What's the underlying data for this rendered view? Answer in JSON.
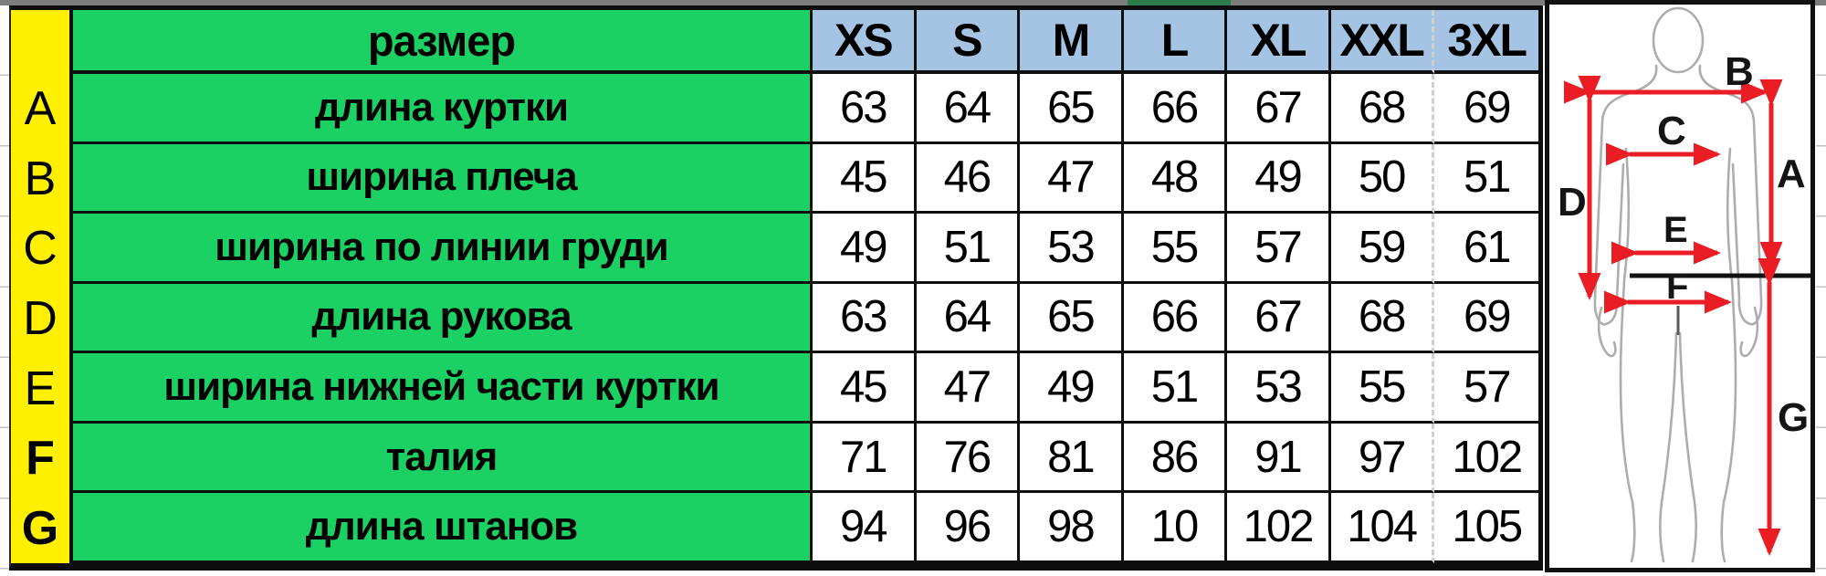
{
  "table": {
    "corner_label": "",
    "header_label": "размер",
    "sizes": [
      "XS",
      "S",
      "M",
      "L",
      "XL",
      "XXL",
      "3XL"
    ],
    "rows": [
      {
        "letter": "A",
        "label": "длина куртки",
        "bold_letter": false,
        "values": [
          "63",
          "64",
          "65",
          "66",
          "67",
          "68",
          "69"
        ]
      },
      {
        "letter": "B",
        "label": "ширина плеча",
        "bold_letter": false,
        "values": [
          "45",
          "46",
          "47",
          "48",
          "49",
          "50",
          "51"
        ]
      },
      {
        "letter": "C",
        "label": "ширина по линии груди",
        "bold_letter": false,
        "values": [
          "49",
          "51",
          "53",
          "55",
          "57",
          "59",
          "61"
        ]
      },
      {
        "letter": "D",
        "label": "длина рукова",
        "bold_letter": false,
        "values": [
          "63",
          "64",
          "65",
          "66",
          "67",
          "68",
          "69"
        ]
      },
      {
        "letter": "E",
        "label": "ширина нижней части куртки",
        "bold_letter": false,
        "values": [
          "45",
          "47",
          "49",
          "51",
          "53",
          "55",
          "57"
        ]
      },
      {
        "letter": "F",
        "label": "талия",
        "bold_letter": true,
        "values": [
          "71",
          "76",
          "81",
          "86",
          "91",
          "97",
          "102"
        ]
      },
      {
        "letter": "G",
        "label": "длина штанов",
        "bold_letter": true,
        "values": [
          "94",
          "96",
          "98",
          "10",
          "102",
          "104",
          "105"
        ]
      }
    ]
  },
  "figure": {
    "labels": [
      "A",
      "B",
      "C",
      "D",
      "E",
      "F",
      "G"
    ]
  },
  "colors": {
    "row_header_yellow": "#ffef00",
    "label_green": "#1bd164",
    "size_header_blue": "#a5c4e4",
    "arrow_red": "#ea1c24",
    "border_black": "#0f0f0f",
    "body_outline_gray": "#adadad"
  }
}
